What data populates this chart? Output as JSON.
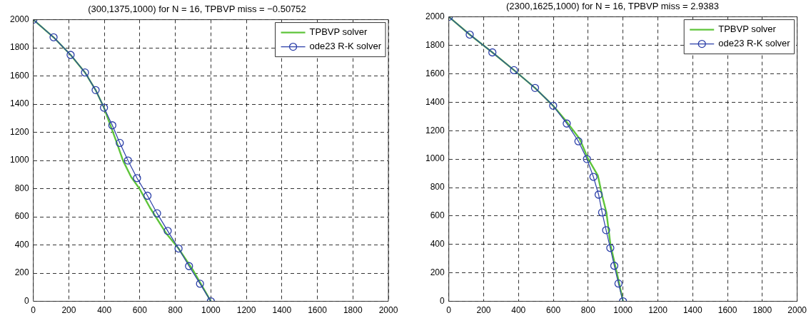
{
  "chart_data": [
    {
      "type": "line",
      "title": "(300,1375,1000) for N = 16, TPBVP miss = −0.50752",
      "xlim": [
        0,
        2000
      ],
      "ylim": [
        0,
        2000
      ],
      "xticks": [
        0,
        200,
        400,
        600,
        800,
        1000,
        1200,
        1400,
        1600,
        1800,
        2000
      ],
      "yticks": [
        0,
        200,
        400,
        600,
        800,
        1000,
        1200,
        1400,
        1600,
        1800,
        2000
      ],
      "grid": true,
      "legend": "top right",
      "line_style": "solid",
      "series": [
        {
          "name": "TPBVP solver",
          "color": "#5ec43a",
          "marker": "none",
          "x": [
            0,
            114,
            210,
            291,
            351,
            398,
            440,
            469,
            505,
            551,
            598,
            657,
            750,
            818,
            897,
            1000
          ],
          "values": [
            2000,
            1875,
            1750,
            1625,
            1500,
            1375,
            1230,
            1130,
            1000,
            883,
            800,
            665,
            480,
            375,
            226,
            0
          ]
        },
        {
          "name": "ode23 R-K solver",
          "color": "#2b3fa8",
          "marker": "circle",
          "x": [
            0,
            114,
            210,
            291,
            351,
            398,
            445,
            487,
            533,
            584,
            643,
            697,
            757,
            818,
            877,
            939,
            1000
          ],
          "values": [
            2000,
            1875,
            1750,
            1625,
            1500,
            1375,
            1250,
            1125,
            1000,
            875,
            750,
            625,
            500,
            375,
            250,
            125,
            0
          ]
        }
      ]
    },
    {
      "type": "line",
      "title": "(2300,1625,1000) for N = 16, TPBVP miss = 2.9383",
      "xlim": [
        0,
        2000
      ],
      "ylim": [
        0,
        2000
      ],
      "xticks": [
        0,
        200,
        400,
        600,
        800,
        1000,
        1200,
        1400,
        1600,
        1800,
        2000
      ],
      "yticks": [
        0,
        200,
        400,
        600,
        800,
        1000,
        1200,
        1400,
        1600,
        1800,
        2000
      ],
      "grid": true,
      "legend": "top right",
      "line_style": "solid",
      "series": [
        {
          "name": "TPBVP solver",
          "color": "#5ec43a",
          "marker": "none",
          "x": [
            0,
            120,
            250,
            374,
            495,
            599,
            676,
            751,
            799,
            856,
            880,
            905,
            928,
            976,
            1000
          ],
          "values": [
            2000,
            1875,
            1750,
            1625,
            1500,
            1375,
            1263,
            1142,
            1004,
            883,
            744,
            623,
            398,
            139,
            0
          ]
        },
        {
          "name": "ode23 R-K solver",
          "color": "#2b3fa8",
          "marker": "circle",
          "x": [
            0,
            120,
            250,
            374,
            495,
            599,
            677,
            744,
            793,
            830,
            860,
            880,
            903,
            927,
            950,
            974,
            1000
          ],
          "values": [
            2000,
            1875,
            1750,
            1625,
            1500,
            1375,
            1250,
            1125,
            1000,
            875,
            750,
            625,
            500,
            375,
            250,
            125,
            0
          ]
        }
      ]
    }
  ]
}
